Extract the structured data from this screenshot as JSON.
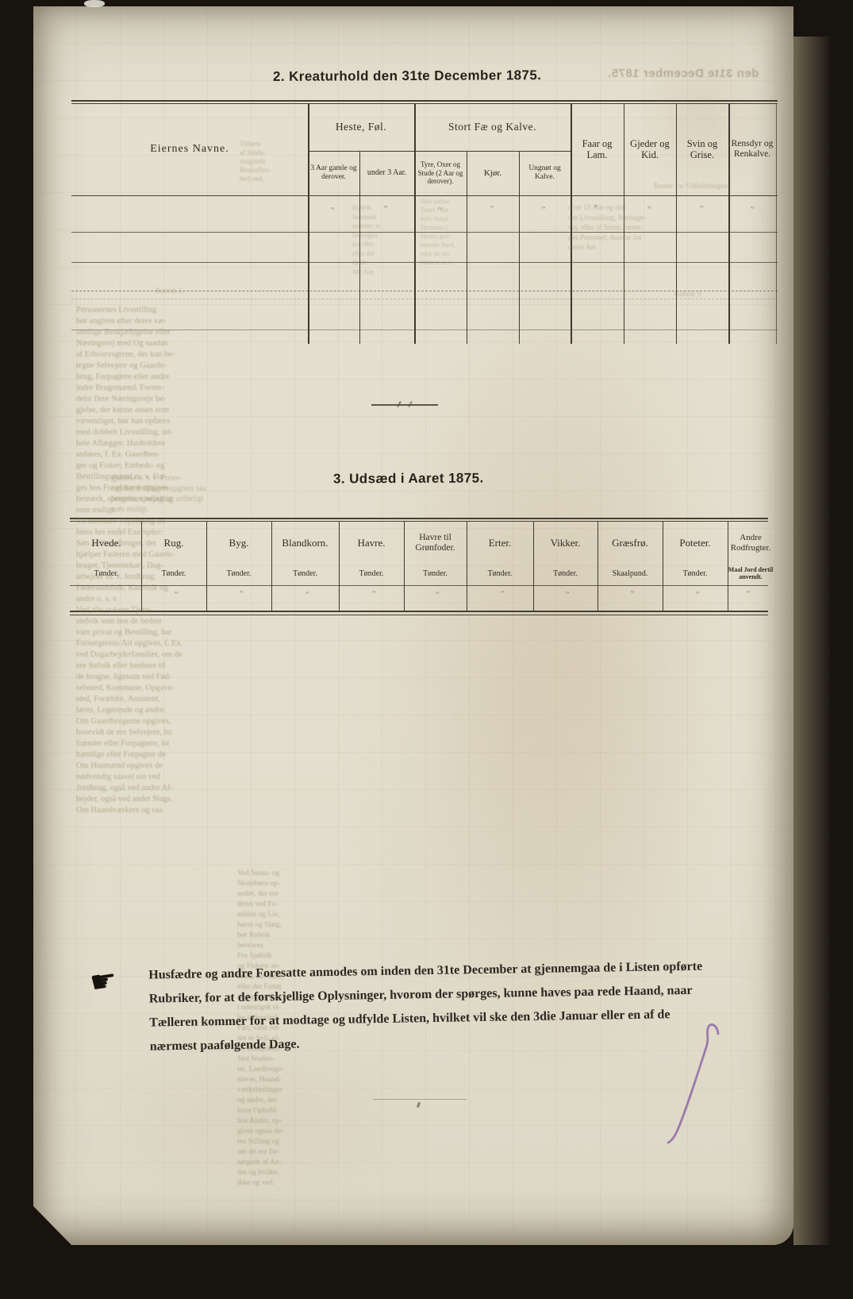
{
  "document": {
    "section2_title": "2.   Kreaturhold den 31te December 1875.",
    "section3_title": "3.   Udsæd i Aaret 1875."
  },
  "livestock_table": {
    "owner_header": "Eiernes Navne.",
    "horses_group": "Heste, Føl.",
    "horses_sub_1": "3 Aar gamle og derover.",
    "horses_sub_2": "under 3 Aar.",
    "cattle_group": "Stort Fæ og Kalve.",
    "cattle_sub_1": "Tyre, Oxer og Stude (2 Aar og derover).",
    "cattle_sub_2": "Kjør.",
    "cattle_sub_3": "Ungnøt og Kalve.",
    "sheep_col": "Faar og Lam.",
    "goats_col": "Gjeder og Kid.",
    "pigs_col": "Svin og Grise.",
    "reindeer_col": "Rensdyr og Renkalve."
  },
  "seed_table": {
    "columns": [
      {
        "label": "Hvede.",
        "unit": "Tønder."
      },
      {
        "label": "Rug.",
        "unit": "Tønder."
      },
      {
        "label": "Byg.",
        "unit": "Tønder."
      },
      {
        "label": "Blandkorn.",
        "unit": "Tønder."
      },
      {
        "label": "Havre.",
        "unit": "Tønder."
      },
      {
        "label": "Havre til Grønfoder.",
        "unit": "Tønder."
      },
      {
        "label": "Erter.",
        "unit": "Tønder."
      },
      {
        "label": "Vikker.",
        "unit": "Tønder."
      },
      {
        "label": "Græsfrø.",
        "unit": "Skaalpund."
      },
      {
        "label": "Poteter.",
        "unit": "Tønder."
      },
      {
        "label": "Andre Rodfrugter.",
        "unit": "Maal Jord dertil anvendt."
      }
    ]
  },
  "notice": {
    "hand_icon": "☛",
    "lines": [
      "Husfædre og andre Foresatte anmodes om inden den 31te December at gjennemgaa de i Listen opførte",
      "Rubriker, for at de forskjellige Oplysninger, hvorom der spørges, kunne haves paa rede Haand, naar",
      "Tælleren kommer for at modtage og udfylde Listen, hvilket vil ske den 3die Januar eller en af de",
      "nærmest paafølgende Dage."
    ]
  },
  "marks": {
    "ditto": "″"
  },
  "bleedthrough": {
    "top_right_mirrored": "den 31te December 1875.",
    "above_seed": [
      "gjørelse o. s. v.  Forøv-",
      "rigt bør Stillingen opgives saa",
      "bestemt, specielt og udførligt",
      "som muligt."
    ],
    "left_column": [
      "Personernes Livsstilling",
      "bør angives efter deres væ-",
      "sentlige Beskjæftigelse eller",
      "Næringsvej med Og saadan",
      "af Erhvervsgrene, der kan be-",
      "tegne Selvejere og Gaards-",
      "brug, Forpagtere eller andre",
      "indre Brugsmænd.  Forme-",
      "delst flere Næringsveje be-",
      "gjelse, der kunne anses som",
      "væsentligst, bør han opføres",
      "med dobbelt Livsstilling, ud-",
      "hele Aflægger.  Husholdere",
      "anføres, f. Ex. Gaardbru-",
      "ger og Fisker; Embeds- og",
      "Bestillingsmænd m. v.  For-",
      "ges hos Forældrene opgives",
      "bemærk, spørgelsen nøjagtig",
      "som muligt.",
      "Til nærmere Vejledning an-",
      "føres her endel Exempler:",
      "Søn af Gaardbruger, der",
      "hjælper Faderen med Gaards-",
      "bruget, Tjenestekarl, Dag-",
      "arbejder m. v.  Jordbrug;",
      "Føderaadsfolk, Kaarfolk og",
      "andre o. s. v.",
      "Ved alle voksne Tjene-",
      "stefolk som hos de bedste",
      "vare privat og Bestilling, har",
      "Forsørgerens Art opgives, f. Ex.",
      "ved Dagarbejderfamilier, om de",
      "ere Søfolk eller henhøre til",
      "de brugne, ligesom ved Fød-",
      "selssted, Kommune, Opgave-",
      "sted, Forældre, Assistent,",
      "lærer, Logerende og andre.",
      "Om Gaardbrugerne opgives,",
      "hvorvidt de ere Selvejere, lst",
      "frænder eller Forpagtere, lst",
      "hændige eller Forpagter de",
      "Om Husmænd opgives de",
      "nødvendig saavel sin ved",
      "Jordbrug, også ved andre Af-",
      "bejder, også ved andet Slags.",
      "Om Haandværkere og saa"
    ],
    "lower_column": [
      "Ved Smaa- og",
      "Skolebørn op-",
      "andre, der ere",
      "deres ved Fa-",
      "milien og Liv,",
      "hører og Slæg,",
      "bør Rubrik",
      "besvares.",
      "For Sjøfolk",
      "og Fiskere an-",
      "føres, om Skib,",
      "eller det Fartøj",
      "de fare med, er",
      "i udenrigsk el-",
      "ler indenrigsk",
      "Fart, samt om",
      "det er Sejl- el-",
      "ler Dampskib.",
      "Ved Studen-",
      "ter, Landbrugs-",
      "elever, Haand-",
      "værkslærlinger",
      "og andre, der",
      "have Ophold",
      "hos Andre, op-",
      "gives ogsaa de-",
      "res Stilling og",
      "om de ere for-",
      "sørgede af An-",
      "dre og hvilke.",
      "ikke og ved."
    ],
    "name_col_a": [
      "Tilførte",
      "af Sinds-",
      "svagheds",
      "Beskaffen-",
      "hed ved."
    ],
    "name_col_b": [
      "Rubrik.",
      "Indemelt",
      "somme- er",
      "indtægter",
      "(er eller",
      "efter det",
      "fjelde",
      "4de Aar."
    ],
    "mid_col": [
      "ikke salme",
      "Snart i det",
      "hele Antal",
      "Personer i",
      "Huset, paa",
      "samme Sted,",
      "naar de ere",
      "fødte o. s. v."
    ],
    "right_col": [
      "over 15 Aar og der-",
      "om Livsstilling, Næringe-",
      "vej, eller af hvem forsør-",
      "ges Personer, Ansvar for",
      "deres Art."
    ],
    "fragments": [
      "Rester for Udfoldningen",
      "Rubrik 9.",
      "Rubrik 2."
    ]
  },
  "colors": {
    "paper": "#e3decd",
    "ink": "#2e2a23",
    "rule": "#3f392e",
    "bleed_text": "#8d7b58",
    "handwriting_purple": "#8e63a6",
    "background": "#17130e"
  }
}
